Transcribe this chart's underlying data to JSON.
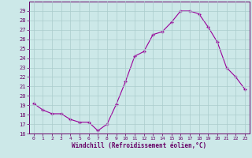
{
  "x": [
    0,
    1,
    2,
    3,
    4,
    5,
    6,
    7,
    8,
    9,
    10,
    11,
    12,
    13,
    14,
    15,
    16,
    17,
    18,
    19,
    20,
    21,
    22,
    23
  ],
  "y": [
    19.2,
    18.5,
    18.1,
    18.1,
    17.5,
    17.2,
    17.2,
    16.3,
    17.0,
    19.1,
    21.5,
    24.2,
    24.7,
    26.5,
    26.8,
    27.8,
    29.0,
    29.0,
    28.7,
    27.3,
    25.7,
    23.0,
    22.0,
    20.7
  ],
  "xlabel": "Windchill (Refroidissement éolien,°C)",
  "ylim": [
    16,
    30
  ],
  "xlim": [
    -0.5,
    23.5
  ],
  "yticks": [
    16,
    17,
    18,
    19,
    20,
    21,
    22,
    23,
    24,
    25,
    26,
    27,
    28,
    29
  ],
  "xticks": [
    0,
    1,
    2,
    3,
    4,
    5,
    6,
    7,
    8,
    9,
    10,
    11,
    12,
    13,
    14,
    15,
    16,
    17,
    18,
    19,
    20,
    21,
    22,
    23
  ],
  "line_color": "#990099",
  "marker": "+",
  "bg_color": "#cce8e8",
  "grid_color": "#aacccc",
  "spine_color": "#660066",
  "tick_color": "#660066",
  "label_color": "#660066"
}
